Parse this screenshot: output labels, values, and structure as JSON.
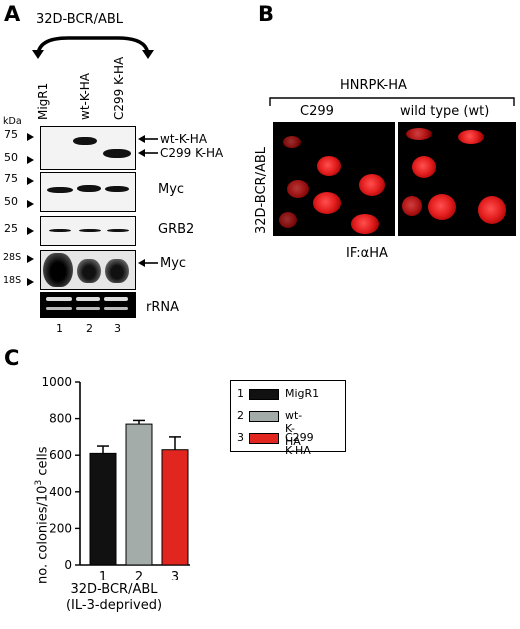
{
  "panelA": {
    "letter": "A",
    "cell_line": "32D-BCR/ABL",
    "lanes": [
      "MigR1",
      "wt-K-HA",
      "C299 K-HA"
    ],
    "lane_numbers": [
      "1",
      "2",
      "3"
    ],
    "kda_label": "kDa",
    "blot1_markers": [
      "75",
      "50"
    ],
    "blot1_labels": [
      "wt-K-HA",
      "C299 K-HA"
    ],
    "blot2_markers": [
      "75",
      "50"
    ],
    "blot2_label": "Myc",
    "blot3_marker": "25",
    "blot3_label": "GRB2",
    "northern_markers": [
      "28S",
      "18S"
    ],
    "northern_label": "Myc",
    "rrna_label": "rRNA"
  },
  "panelB": {
    "letter": "B",
    "construct": "HNRPK-HA",
    "col1": "C299",
    "col2": "wild type (wt)",
    "row_label": "32D-BCR/ABL",
    "stain": "IF:αHA"
  },
  "panelC": {
    "letter": "C",
    "ylabel_main": "no. colonies/10",
    "ylabel_sup": "3",
    "ylabel_end": " cells",
    "xlabel_line1": "32D-BCR/ABL",
    "xlabel_line2": "(IL-3-deprived)",
    "colors": {
      "MigR1": "#111111",
      "wt-K-HA": "#a3aca8",
      "C299 K-HA": "#e0261f"
    }
  },
  "chart_data": {
    "type": "bar",
    "categories": [
      "1",
      "2",
      "3"
    ],
    "values": [
      610,
      770,
      630
    ],
    "errors": [
      40,
      20,
      70
    ],
    "series_names": [
      "MigR1",
      "wt-K-HA",
      "C299 K-HA"
    ],
    "legend_numbers": [
      "1",
      "2",
      "3"
    ],
    "yticks": [
      0,
      200,
      400,
      600,
      800,
      1000
    ],
    "ylim": [
      0,
      1000
    ],
    "legend_placement": "top-right"
  }
}
